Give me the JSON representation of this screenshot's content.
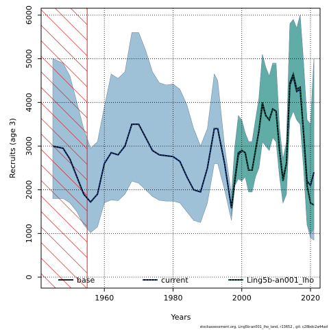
{
  "chart_data": {
    "type": "line",
    "x_label": "Years",
    "y_label": "Recruits (age 3)",
    "footnote": "stockassessment.org, Ling5b-an001_lho_land, r13652 , git: c28bdc2a44ad",
    "xlim": [
      1941.6,
      2022.8
    ],
    "ylim": [
      -251,
      6157
    ],
    "xticks": [
      1960,
      1980,
      2000,
      2020
    ],
    "yticks": [
      0,
      1000,
      2000,
      3000,
      4000,
      5000,
      6000
    ],
    "grid": true,
    "hatch": {
      "xlim": [
        1941.6,
        1955
      ],
      "color": "#e02020"
    },
    "x": [
      1945,
      1948,
      1950,
      1952,
      1954,
      1956,
      1958,
      1960,
      1962,
      1964,
      1966,
      1968,
      1970,
      1972,
      1974,
      1976,
      1978,
      1980,
      1982,
      1984,
      1986,
      1988,
      1990,
      1992,
      1993,
      1995,
      1997,
      1998,
      1999,
      2000,
      2001,
      2002,
      2003,
      2004,
      2005,
      2006,
      2007,
      2008,
      2009,
      2010,
      2011,
      2012,
      2013,
      2014,
      2015,
      2016,
      2017,
      2018,
      2019,
      2020,
      2021
    ],
    "bands": [
      {
        "color": "#9ec1d8",
        "upper": [
          5000,
          4900,
          4600,
          4000,
          3400,
          2950,
          3100,
          3900,
          4650,
          4550,
          4700,
          5600,
          5600,
          5200,
          4700,
          4450,
          4400,
          4420,
          4300,
          3950,
          3400,
          3000,
          3400,
          4650,
          4500,
          3000,
          1900,
          3000,
          3600,
          3600,
          3300,
          3100,
          3100,
          3600,
          4100,
          5100,
          4800,
          4600,
          4850,
          4850,
          3400,
          2700,
          3100,
          5800,
          5900,
          5700,
          6000,
          4900,
          3600,
          3500,
          5000
        ],
        "lower": [
          1800,
          1800,
          1700,
          1500,
          1200,
          1020,
          1150,
          1700,
          1770,
          1750,
          1900,
          2200,
          2150,
          2000,
          1850,
          1760,
          1740,
          1740,
          1700,
          1500,
          1300,
          1250,
          1700,
          2600,
          2600,
          2000,
          1300,
          2100,
          2250,
          2200,
          2300,
          1950,
          1950,
          2300,
          2500,
          3100,
          3000,
          2900,
          3200,
          3100,
          2300,
          1700,
          1900,
          3600,
          3800,
          3600,
          3500,
          2500,
          1200,
          900,
          850
        ]
      },
      {
        "color": "#4fa89a",
        "upper": [
          null,
          null,
          null,
          null,
          null,
          null,
          null,
          null,
          null,
          null,
          null,
          null,
          null,
          null,
          null,
          null,
          null,
          null,
          null,
          null,
          null,
          null,
          null,
          null,
          null,
          null,
          1900,
          3000,
          3700,
          3600,
          3300,
          3100,
          3100,
          3600,
          4100,
          5100,
          4800,
          4600,
          4900,
          4900,
          3400,
          2700,
          3100,
          5800,
          5900,
          5700,
          6000,
          4900,
          3600,
          3500,
          5000
        ],
        "lower": [
          null,
          null,
          null,
          null,
          null,
          null,
          null,
          null,
          null,
          null,
          null,
          null,
          null,
          null,
          null,
          null,
          null,
          null,
          null,
          null,
          null,
          null,
          null,
          null,
          null,
          null,
          1400,
          2100,
          2250,
          2200,
          2300,
          1950,
          1950,
          2300,
          2500,
          3100,
          3000,
          2900,
          3200,
          3100,
          2300,
          1700,
          1900,
          3600,
          3800,
          3600,
          3500,
          2500,
          1200,
          1000,
          1100
        ]
      }
    ],
    "series": [
      {
        "name": "base",
        "color": "#000000",
        "values": [
          3000,
          2950,
          2700,
          2300,
          1900,
          1720,
          1900,
          2600,
          2850,
          2800,
          3000,
          3500,
          3500,
          3200,
          2900,
          2800,
          2780,
          2760,
          2650,
          2300,
          2000,
          1950,
          2500,
          3400,
          3400,
          2600,
          1580,
          2200,
          2800,
          2900,
          2850,
          2450,
          2450,
          2900,
          3350,
          3950,
          3700,
          3600,
          3850,
          3800,
          2900,
          2250,
          2600,
          4400,
          4600,
          4250,
          4300,
          3300,
          2200,
          2100,
          2400
        ]
      },
      {
        "name": "current",
        "color": "#0b3d91",
        "values": [
          3000,
          2950,
          2700,
          2300,
          1900,
          1720,
          1900,
          2600,
          2850,
          2800,
          3000,
          3500,
          3500,
          3200,
          2900,
          2800,
          2780,
          2760,
          2650,
          2300,
          2000,
          1950,
          2500,
          3400,
          3400,
          2600,
          1580,
          2200,
          2800,
          2900,
          2850,
          2450,
          2450,
          2900,
          3350,
          3950,
          3700,
          3600,
          3850,
          3800,
          2900,
          2250,
          2600,
          4400,
          4600,
          4250,
          4300,
          3300,
          2200,
          2100,
          2400
        ]
      },
      {
        "name": "Ling5b-an001_lho",
        "color": "#0a5a4a",
        "values": [
          null,
          null,
          null,
          null,
          null,
          null,
          null,
          null,
          null,
          null,
          null,
          null,
          null,
          null,
          null,
          null,
          null,
          null,
          null,
          null,
          null,
          null,
          null,
          null,
          null,
          null,
          1600,
          2250,
          2850,
          2900,
          2850,
          2450,
          2450,
          2900,
          3350,
          4000,
          3700,
          3600,
          3850,
          3800,
          2900,
          2200,
          2600,
          4450,
          4650,
          4300,
          4350,
          3300,
          2100,
          1700,
          1650
        ]
      }
    ]
  }
}
